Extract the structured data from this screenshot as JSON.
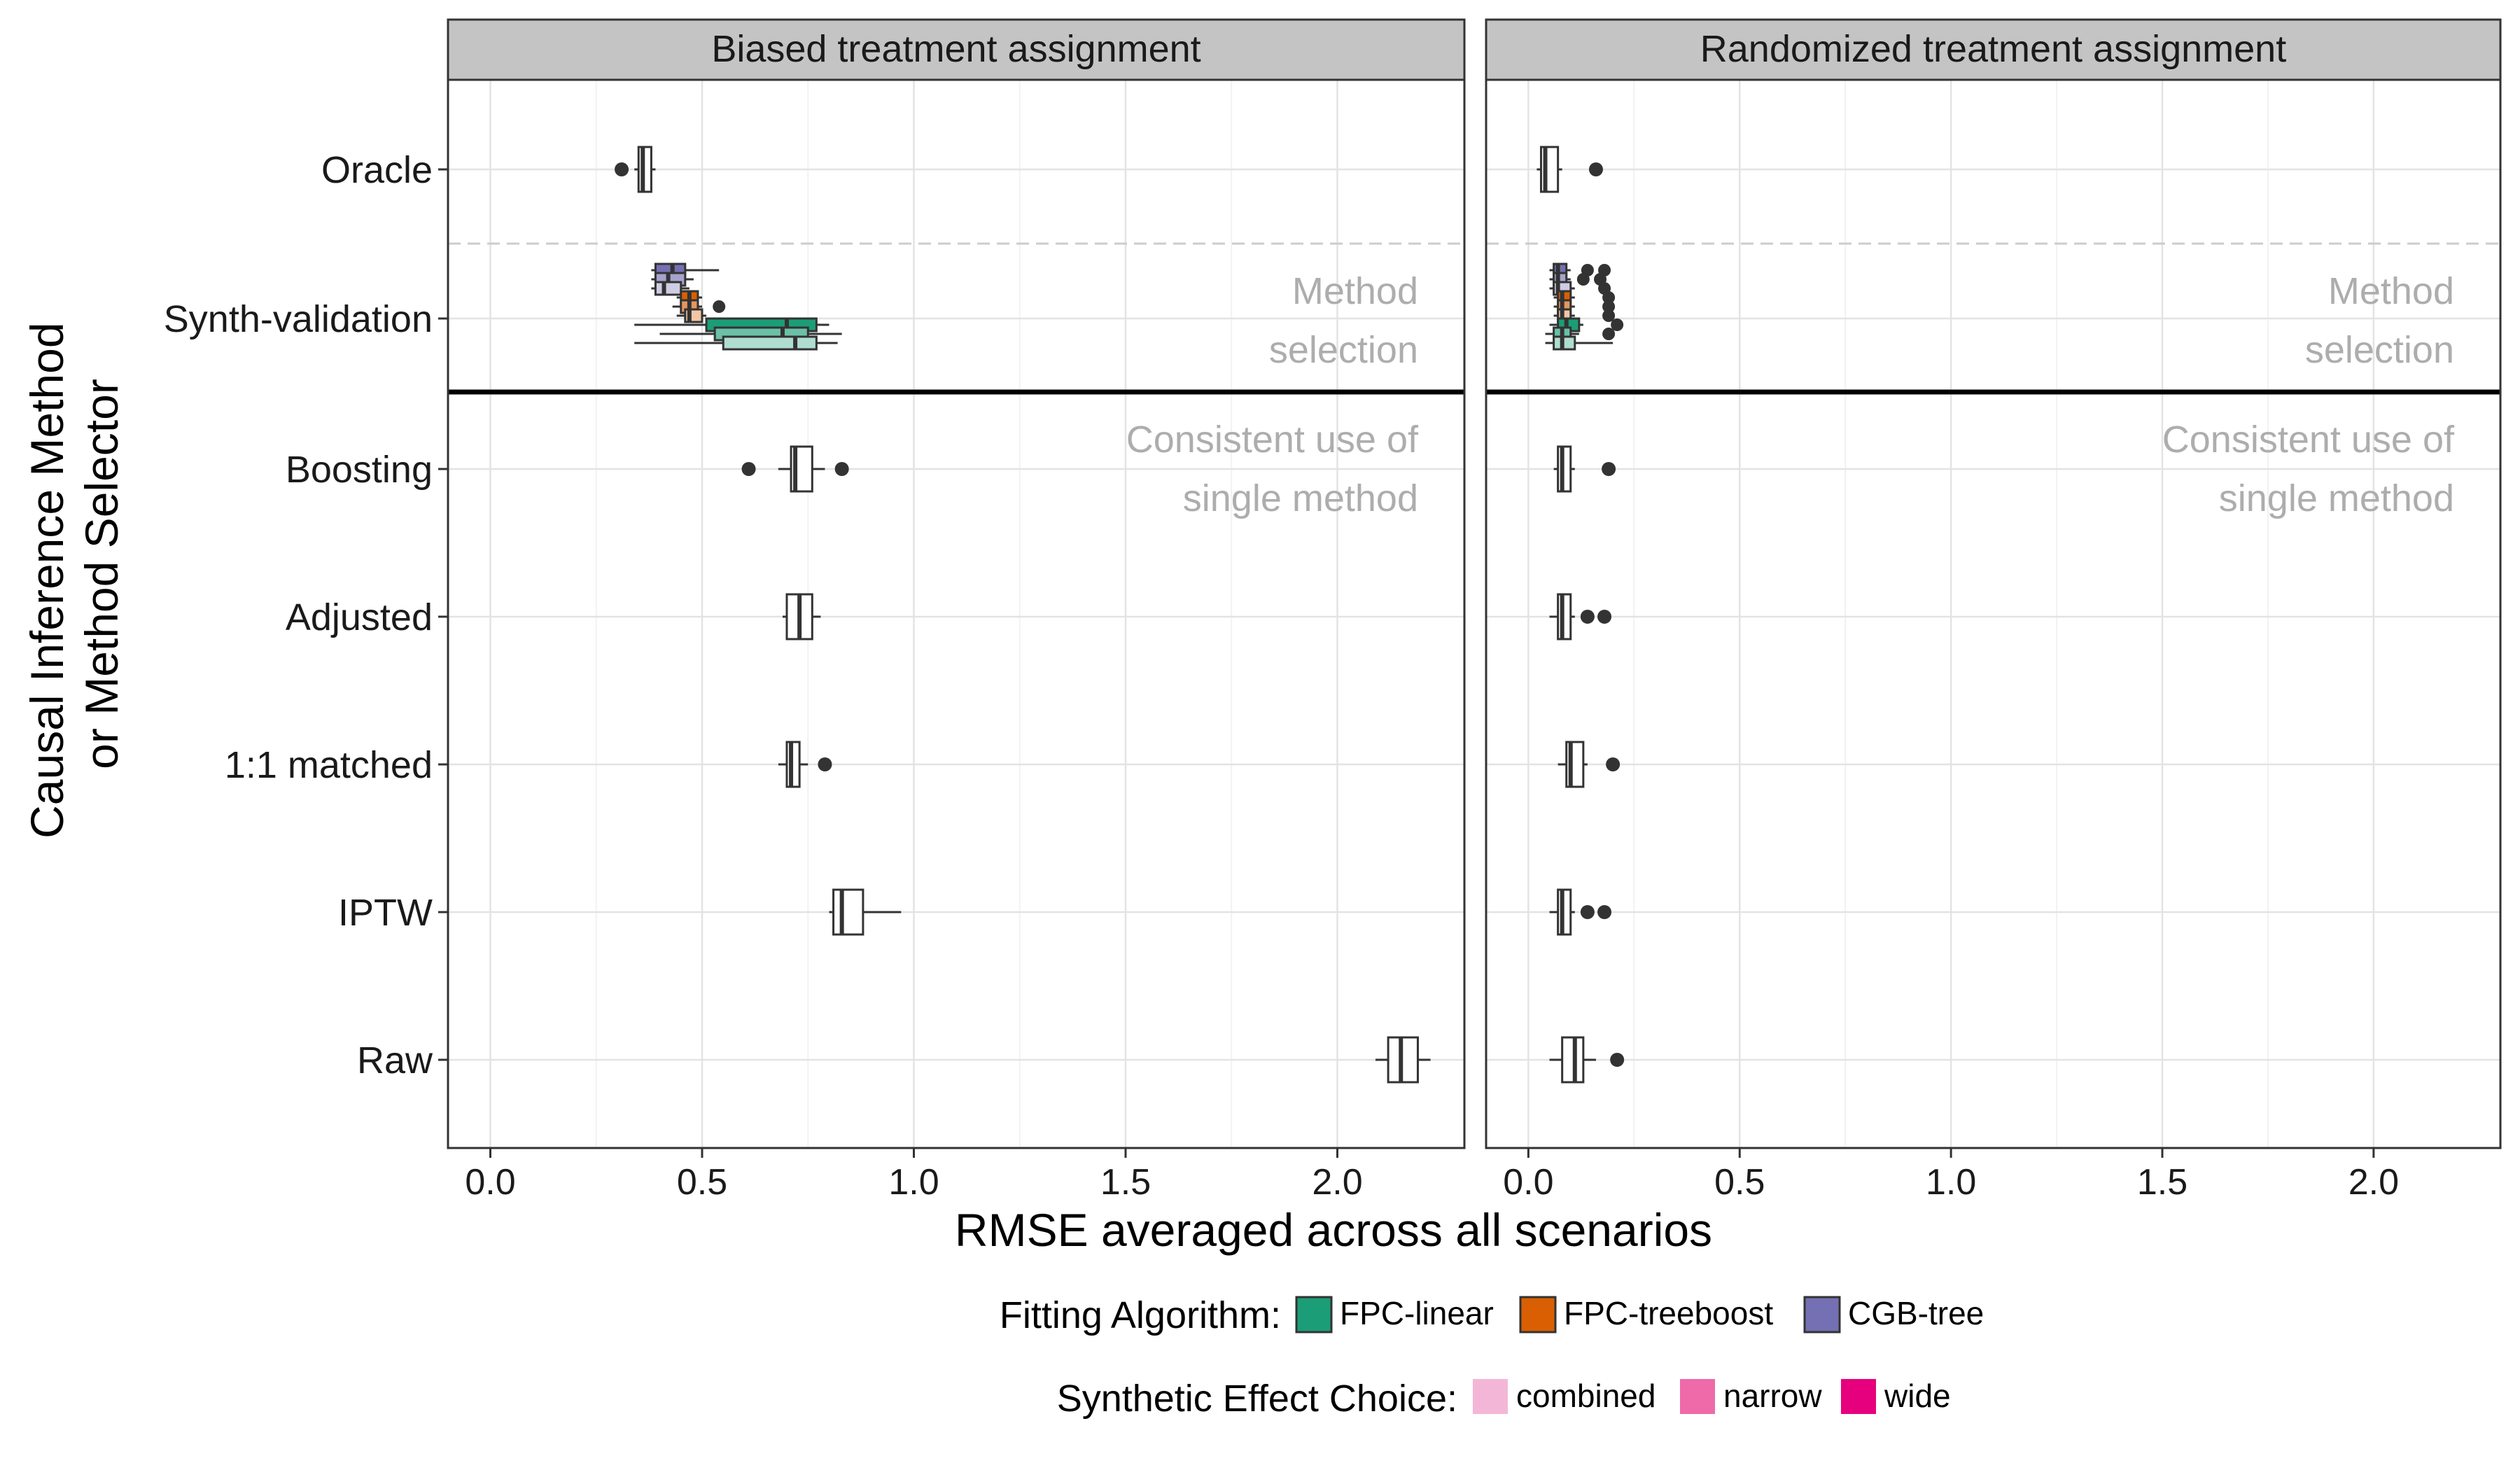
{
  "chart_data": {
    "type": "boxplot",
    "x_label": "RMSE averaged across all scenarios",
    "y_label_line1": "Causal Inference Method",
    "y_label_line2": "or Method Selector",
    "xlim": [
      -0.1,
      2.3
    ],
    "x_ticks": [
      0.0,
      0.5,
      1.0,
      1.5,
      2.0
    ],
    "x_tick_labels": [
      "0.0",
      "0.5",
      "1.0",
      "1.5",
      "2.0"
    ],
    "categories": [
      "Oracle",
      "Synth-validation",
      "Boosting",
      "Adjusted",
      "1:1 matched",
      "IPTW",
      "Raw"
    ],
    "annotations": {
      "method_selection_1": "Method",
      "method_selection_2": "selection",
      "consistent_1": "Consistent use of",
      "consistent_2": "single method"
    },
    "panels": [
      {
        "title": "Biased treatment assignment",
        "boxes": [
          {
            "category": "Oracle",
            "q1": 0.35,
            "median": 0.36,
            "q3": 0.38,
            "wlo": 0.34,
            "whi": 0.39,
            "outliers": [
              0.31
            ]
          },
          {
            "category": "Boosting",
            "q1": 0.71,
            "median": 0.72,
            "q3": 0.76,
            "wlo": 0.68,
            "whi": 0.79,
            "outliers": [
              0.61,
              0.83
            ]
          },
          {
            "category": "Adjusted",
            "q1": 0.7,
            "median": 0.73,
            "q3": 0.76,
            "wlo": 0.69,
            "whi": 0.78,
            "outliers": []
          },
          {
            "category": "1:1 matched",
            "q1": 0.7,
            "median": 0.71,
            "q3": 0.73,
            "wlo": 0.68,
            "whi": 0.75,
            "outliers": [
              0.79
            ]
          },
          {
            "category": "IPTW",
            "q1": 0.81,
            "median": 0.83,
            "q3": 0.88,
            "wlo": 0.8,
            "whi": 0.97,
            "outliers": []
          },
          {
            "category": "Raw",
            "q1": 2.12,
            "median": 2.15,
            "q3": 2.19,
            "wlo": 2.09,
            "whi": 2.22,
            "outliers": []
          }
        ],
        "synth_boxes": [
          {
            "algorithm": "CGB-tree",
            "effect": "wide",
            "q1": 0.39,
            "median": 0.43,
            "q3": 0.46,
            "wlo": 0.38,
            "whi": 0.54,
            "outliers": []
          },
          {
            "algorithm": "CGB-tree",
            "effect": "narrow",
            "q1": 0.39,
            "median": 0.42,
            "q3": 0.46,
            "wlo": 0.38,
            "whi": 0.48,
            "outliers": []
          },
          {
            "algorithm": "CGB-tree",
            "effect": "combined",
            "q1": 0.39,
            "median": 0.41,
            "q3": 0.45,
            "wlo": 0.38,
            "whi": 0.47,
            "outliers": []
          },
          {
            "algorithm": "FPC-treeboost",
            "effect": "wide",
            "q1": 0.45,
            "median": 0.47,
            "q3": 0.49,
            "wlo": 0.44,
            "whi": 0.5,
            "outliers": []
          },
          {
            "algorithm": "FPC-treeboost",
            "effect": "narrow",
            "q1": 0.45,
            "median": 0.47,
            "q3": 0.49,
            "wlo": 0.43,
            "whi": 0.5,
            "outliers": [
              0.54
            ]
          },
          {
            "algorithm": "FPC-treeboost",
            "effect": "combined",
            "q1": 0.46,
            "median": 0.47,
            "q3": 0.5,
            "wlo": 0.44,
            "whi": 0.51,
            "outliers": []
          },
          {
            "algorithm": "FPC-linear",
            "effect": "wide",
            "q1": 0.51,
            "median": 0.7,
            "q3": 0.77,
            "wlo": 0.34,
            "whi": 0.8,
            "outliers": []
          },
          {
            "algorithm": "FPC-linear",
            "effect": "narrow",
            "q1": 0.53,
            "median": 0.69,
            "q3": 0.75,
            "wlo": 0.4,
            "whi": 0.83,
            "outliers": []
          },
          {
            "algorithm": "FPC-linear",
            "effect": "combined",
            "q1": 0.55,
            "median": 0.72,
            "q3": 0.77,
            "wlo": 0.34,
            "whi": 0.82,
            "outliers": []
          }
        ]
      },
      {
        "title": "Randomized treatment assignment",
        "boxes": [
          {
            "category": "Oracle",
            "q1": 0.03,
            "median": 0.04,
            "q3": 0.07,
            "wlo": 0.02,
            "whi": 0.08,
            "outliers": [
              0.16
            ]
          },
          {
            "category": "Boosting",
            "q1": 0.07,
            "median": 0.08,
            "q3": 0.1,
            "wlo": 0.06,
            "whi": 0.11,
            "outliers": [
              0.19
            ]
          },
          {
            "category": "Adjusted",
            "q1": 0.07,
            "median": 0.08,
            "q3": 0.1,
            "wlo": 0.05,
            "whi": 0.11,
            "outliers": [
              0.14,
              0.18
            ]
          },
          {
            "category": "1:1 matched",
            "q1": 0.09,
            "median": 0.1,
            "q3": 0.13,
            "wlo": 0.07,
            "whi": 0.14,
            "outliers": [
              0.2
            ]
          },
          {
            "category": "IPTW",
            "q1": 0.07,
            "median": 0.08,
            "q3": 0.1,
            "wlo": 0.05,
            "whi": 0.11,
            "outliers": [
              0.14,
              0.18
            ]
          },
          {
            "category": "Raw",
            "q1": 0.08,
            "median": 0.11,
            "q3": 0.13,
            "wlo": 0.05,
            "whi": 0.16,
            "outliers": [
              0.21
            ]
          }
        ],
        "synth_boxes": [
          {
            "algorithm": "CGB-tree",
            "effect": "wide",
            "q1": 0.06,
            "median": 0.07,
            "q3": 0.09,
            "wlo": 0.05,
            "whi": 0.1,
            "outliers": [
              0.14,
              0.18
            ]
          },
          {
            "algorithm": "CGB-tree",
            "effect": "narrow",
            "q1": 0.06,
            "median": 0.07,
            "q3": 0.09,
            "wlo": 0.05,
            "whi": 0.1,
            "outliers": [
              0.13,
              0.17
            ]
          },
          {
            "algorithm": "CGB-tree",
            "effect": "combined",
            "q1": 0.06,
            "median": 0.07,
            "q3": 0.1,
            "wlo": 0.05,
            "whi": 0.11,
            "outliers": [
              0.18
            ]
          },
          {
            "algorithm": "FPC-treeboost",
            "effect": "wide",
            "q1": 0.07,
            "median": 0.08,
            "q3": 0.1,
            "wlo": 0.06,
            "whi": 0.11,
            "outliers": [
              0.19
            ]
          },
          {
            "algorithm": "FPC-treeboost",
            "effect": "narrow",
            "q1": 0.07,
            "median": 0.08,
            "q3": 0.1,
            "wlo": 0.06,
            "whi": 0.11,
            "outliers": [
              0.19
            ]
          },
          {
            "algorithm": "FPC-treeboost",
            "effect": "combined",
            "q1": 0.07,
            "median": 0.08,
            "q3": 0.1,
            "wlo": 0.06,
            "whi": 0.11,
            "outliers": [
              0.19
            ]
          },
          {
            "algorithm": "FPC-linear",
            "effect": "wide",
            "q1": 0.07,
            "median": 0.09,
            "q3": 0.12,
            "wlo": 0.05,
            "whi": 0.13,
            "outliers": [
              0.21
            ]
          },
          {
            "algorithm": "FPC-linear",
            "effect": "narrow",
            "q1": 0.06,
            "median": 0.08,
            "q3": 0.1,
            "wlo": 0.04,
            "whi": 0.12,
            "outliers": [
              0.19
            ]
          },
          {
            "algorithm": "FPC-linear",
            "effect": "combined",
            "q1": 0.06,
            "median": 0.08,
            "q3": 0.11,
            "wlo": 0.04,
            "whi": 0.2,
            "outliers": []
          }
        ]
      }
    ],
    "legend": {
      "algorithm_title": "Fitting Algorithm:",
      "algorithms": [
        {
          "name": "FPC-linear",
          "color": "#1b9e77"
        },
        {
          "name": "FPC-treeboost",
          "color": "#d95f02"
        },
        {
          "name": "CGB-tree",
          "color": "#7570b3"
        }
      ],
      "effect_title": "Synthetic Effect Choice:",
      "effects": [
        {
          "name": "combined",
          "color": "#f4b6d6"
        },
        {
          "name": "narrow",
          "color": "#ee6aa9"
        },
        {
          "name": "wide",
          "color": "#e7007d"
        }
      ]
    }
  }
}
